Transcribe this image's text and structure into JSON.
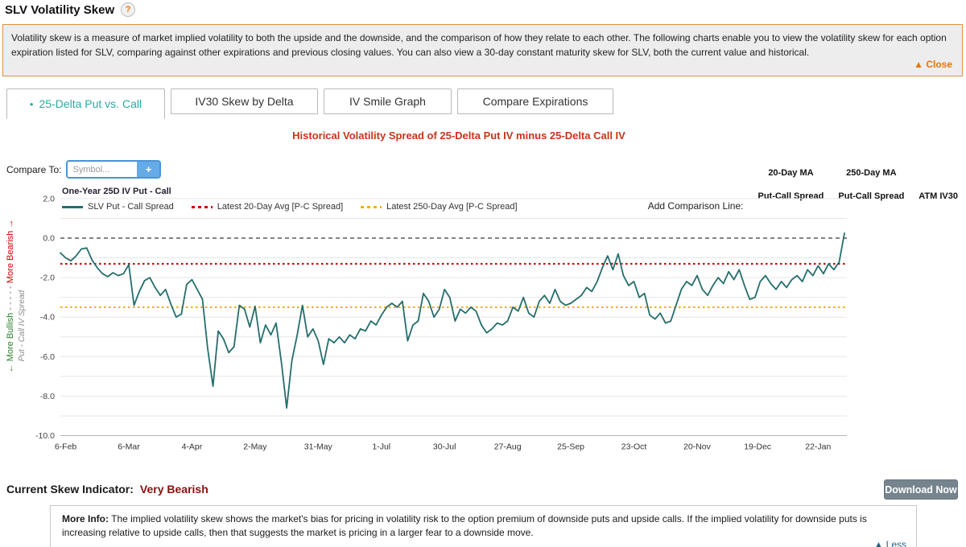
{
  "header": {
    "title": "SLV Volatility Skew",
    "help_icon": "?"
  },
  "description": {
    "text": "Volatility skew is a measure of market implied volatility to both the upside and the downside, and the comparison of how they relate to each other. The following charts enable you to view the volatility skew for each option expiration listed for SLV, comparing against other expirations and previous closing values. You can also view a 30-day constant maturity skew for SLV, both the current value and historical.",
    "close_label": "▲ Close"
  },
  "tab_bar": {
    "active_marker": "•",
    "tabs": [
      {
        "label": "25-Delta Put vs. Call"
      },
      {
        "label": "IV30 Skew by Delta"
      },
      {
        "label": "IV Smile Graph"
      },
      {
        "label": "Compare Expirations"
      }
    ]
  },
  "controls": {
    "compare_to_label": "Compare To:",
    "symbol_placeholder": "Symbol...",
    "add_button": "+",
    "comparison_label": "Add Comparison Line:",
    "options": [
      {
        "line1": "20-Day MA",
        "line2": "Put-Call Spread"
      },
      {
        "line1": "250-Day MA",
        "line2": "Put-Call Spread"
      },
      {
        "line1": "ATM IV30",
        "line2": ""
      }
    ]
  },
  "chart_data": {
    "type": "line",
    "title": "Historical Volatility Spread of 25-Delta Put IV minus 25-Delta Call IV",
    "legend_title": "One-Year 25D IV Put - Call",
    "ylabel": "Put - Call IV Spread",
    "ylim": [
      -10,
      2.3
    ],
    "y_ticks": [
      2,
      0,
      -2,
      -4,
      -6,
      -8,
      -10
    ],
    "grid": true,
    "zero_line": 0,
    "left_axis_annotation": {
      "bottom": "← More Bullish",
      "dashes": " - - - - - ",
      "top": "More Bearish →"
    },
    "x_ticks": [
      {
        "label": "6-Feb",
        "i": 1
      },
      {
        "label": "6-Mar",
        "i": 13
      },
      {
        "label": "4-Apr",
        "i": 25
      },
      {
        "label": "2-May",
        "i": 37
      },
      {
        "label": "31-May",
        "i": 49
      },
      {
        "label": "1-Jul",
        "i": 61
      },
      {
        "label": "30-Jul",
        "i": 73
      },
      {
        "label": "27-Aug",
        "i": 85
      },
      {
        "label": "25-Sep",
        "i": 97
      },
      {
        "label": "23-Oct",
        "i": 109
      },
      {
        "label": "20-Nov",
        "i": 121
      },
      {
        "label": "19-Dec",
        "i": 132.5
      },
      {
        "label": "22-Jan",
        "i": 144
      }
    ],
    "series": [
      {
        "name": "SLV Put - Call Spread",
        "color": "#246e6b",
        "style": "solid",
        "values": [
          -0.75,
          -1.0,
          -1.15,
          -0.9,
          -0.55,
          -0.5,
          -1.1,
          -1.5,
          -1.8,
          -1.95,
          -1.75,
          -1.9,
          -1.8,
          -1.35,
          -3.4,
          -2.7,
          -2.15,
          -2.0,
          -2.5,
          -2.9,
          -2.6,
          -3.35,
          -4.0,
          -3.85,
          -2.35,
          -2.1,
          -2.6,
          -3.1,
          -5.6,
          -7.5,
          -4.7,
          -5.1,
          -5.8,
          -5.5,
          -3.4,
          -3.6,
          -4.5,
          -3.45,
          -5.3,
          -4.4,
          -4.9,
          -4.3,
          -6.3,
          -8.6,
          -6.2,
          -4.9,
          -3.4,
          -5.0,
          -4.6,
          -5.2,
          -6.4,
          -5.1,
          -5.3,
          -5.0,
          -5.3,
          -4.9,
          -5.1,
          -4.6,
          -4.7,
          -4.2,
          -4.4,
          -3.9,
          -3.5,
          -3.3,
          -3.5,
          -3.2,
          -5.2,
          -4.4,
          -4.2,
          -2.8,
          -3.2,
          -4.0,
          -3.6,
          -2.6,
          -3.0,
          -4.2,
          -3.6,
          -3.8,
          -3.5,
          -3.7,
          -4.4,
          -4.8,
          -4.6,
          -4.3,
          -4.4,
          -4.2,
          -3.5,
          -3.7,
          -3.0,
          -3.8,
          -4.0,
          -3.2,
          -2.9,
          -3.3,
          -2.6,
          -3.2,
          -3.4,
          -3.3,
          -3.1,
          -2.9,
          -2.5,
          -2.7,
          -2.2,
          -1.5,
          -0.9,
          -1.6,
          -0.8,
          -1.9,
          -2.4,
          -2.2,
          -3.0,
          -2.8,
          -3.9,
          -4.1,
          -3.8,
          -4.3,
          -4.2,
          -3.4,
          -2.6,
          -2.2,
          -2.4,
          -1.9,
          -2.6,
          -2.9,
          -2.4,
          -2.0,
          -2.3,
          -1.7,
          -2.1,
          -1.6,
          -2.4,
          -3.1,
          -3.0,
          -2.2,
          -1.9,
          -2.3,
          -2.6,
          -2.2,
          -2.5,
          -2.1,
          -1.9,
          -2.2,
          -1.6,
          -1.9,
          -1.4,
          -1.8,
          -1.3,
          -1.6,
          -1.2,
          0.25
        ]
      },
      {
        "name": "Latest 20-Day Avg [P-C Spread]",
        "color": "#cc0000",
        "style": "dotted",
        "value": -1.3
      },
      {
        "name": "Latest 250-Day Avg [P-C Spread]",
        "color": "#f9ae17",
        "style": "dotted",
        "value": -3.5
      }
    ]
  },
  "footer": {
    "skew_label": "Current Skew Indicator:",
    "skew_value": "Very Bearish",
    "download_label": "Download Now",
    "more_info_label": "More Info:",
    "more_info_text": "  The implied volatility skew shows the market's bias for pricing in volatility risk to the option premium of downside puts and upside calls. If the implied volatility for downside puts is increasing relative to upside calls, then that suggests the market is pricing in a larger fear to a downside move.",
    "less_label": "▲ Less"
  }
}
